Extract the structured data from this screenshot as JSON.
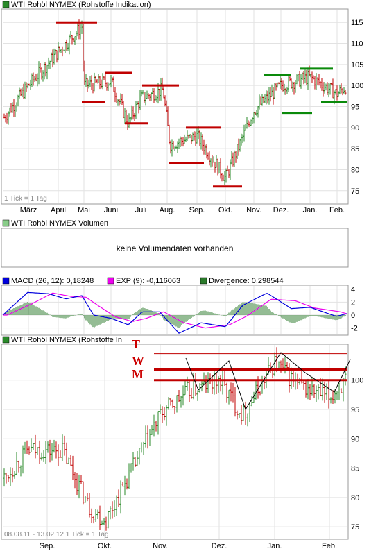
{
  "colors": {
    "up": "#2a8a2a",
    "down": "#c00000",
    "res": "#c00000",
    "sup": "#0a8a0a",
    "macd": "#0000dd",
    "ema": "#ee00ee",
    "div": "#2a7a2a"
  },
  "panel1": {
    "title": "WTI Rohöl NYMEX (Rohstoffe Indikation)",
    "footnote": "1 Tick = 1 Tag"
  },
  "panel2": {
    "title": "WTI Rohöl NYMEX Volumen",
    "message": "keine Volumendaten vorhanden"
  },
  "panel3": {
    "legend": [
      "MACD (26, 12): 0,18248",
      "EXP (9): -0,116063",
      "Divergence: 0,298544"
    ]
  },
  "panel4": {
    "title": "WTI Rohöl NYMEX (Rohstoffe In",
    "letters": [
      "T",
      "W",
      "M"
    ],
    "footnote": "08.08.11 - 13.02.12   1 Tick = 1 Tag"
  },
  "chart_data": [
    {
      "type": "line",
      "title": "WTI Rohöl NYMEX (Rohstoffe Indikation)",
      "subtype": "ohlc-bars",
      "x_ticks": [
        "März",
        "April",
        "Mai",
        "Juni",
        "Juli",
        "Aug.",
        "Sep.",
        "Okt.",
        "Nov.",
        "Dez.",
        "Jan.",
        "Feb."
      ],
      "y_ticks": [
        75,
        80,
        85,
        90,
        95,
        100,
        105,
        110,
        115
      ],
      "ylim": [
        72,
        118
      ],
      "approx_series": [
        {
          "x": "Feb. (start)",
          "y": 92
        },
        {
          "x": "März",
          "y": 100
        },
        {
          "x": "April",
          "y": 108
        },
        {
          "x": "late April",
          "y": 114
        },
        {
          "x": "Mai",
          "y": 100
        },
        {
          "x": "Juni",
          "y": 101
        },
        {
          "x": "late Juni",
          "y": 91
        },
        {
          "x": "Juli",
          "y": 97
        },
        {
          "x": "late Juli",
          "y": 99
        },
        {
          "x": "Aug.",
          "y": 86
        },
        {
          "x": "Sep.",
          "y": 88
        },
        {
          "x": "Okt.",
          "y": 78
        },
        {
          "x": "Nov.",
          "y": 94
        },
        {
          "x": "Dez.",
          "y": 100
        },
        {
          "x": "Jan.",
          "y": 102
        },
        {
          "x": "Feb.",
          "y": 98
        },
        {
          "x": "Feb. (end)",
          "y": 100
        }
      ],
      "resistance_levels": [
        115,
        96,
        103,
        91,
        100,
        81.5,
        90,
        76
      ],
      "support_levels": [
        102.5,
        93.5,
        104,
        96
      ]
    },
    {
      "type": "line",
      "title": "MACD",
      "series": [
        {
          "name": "MACD (26, 12)",
          "last": 0.18248
        },
        {
          "name": "EXP (9)",
          "last": -0.116063
        },
        {
          "name": "Divergence",
          "last": 0.298544
        }
      ],
      "y_ticks": [
        4,
        2,
        0,
        -2
      ]
    },
    {
      "type": "line",
      "title": "WTI Rohöl NYMEX (Rohstoffe In",
      "subtype": "ohlc-bars",
      "x_ticks": [
        "Sep.",
        "Okt.",
        "Nov.",
        "Dez.",
        "Jan.",
        "Feb."
      ],
      "y_ticks": [
        75,
        80,
        85,
        90,
        95,
        100
      ],
      "ylim": [
        73,
        106
      ],
      "date_range": [
        "08.08.11",
        "13.02.12"
      ],
      "approx_series": [
        {
          "x": "Aug.",
          "y": 83
        },
        {
          "x": "early Sep.",
          "y": 88
        },
        {
          "x": "mid Sep.",
          "y": 88
        },
        {
          "x": "Okt.",
          "y": 78
        },
        {
          "x": "early Okt.",
          "y": 76
        },
        {
          "x": "late Okt.",
          "y": 87
        },
        {
          "x": "Nov.",
          "y": 94
        },
        {
          "x": "mid Nov.",
          "y": 98
        },
        {
          "x": "Dez.",
          "y": 100
        },
        {
          "x": "mid Dez.",
          "y": 94
        },
        {
          "x": "Jan.",
          "y": 103
        },
        {
          "x": "mid Jan.",
          "y": 99
        },
        {
          "x": "Feb.",
          "y": 97
        },
        {
          "x": "Feb. (end)",
          "y": 100
        }
      ],
      "horizontal_lines": [
        104.5,
        101.8,
        100.0
      ]
    }
  ]
}
